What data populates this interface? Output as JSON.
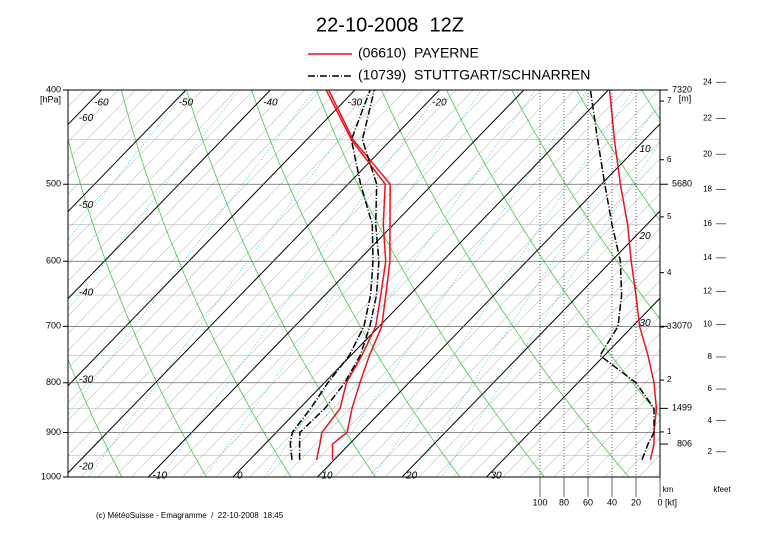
{
  "chart_data": {
    "type": "emagram",
    "title": "22-10-2008  12Z",
    "ylim": [
      400,
      1000
    ],
    "yticks": [
      400,
      500,
      600,
      700,
      800,
      900,
      1000
    ],
    "log_y": true,
    "pressure_unit": "[hPa]",
    "temperature_ticks": [
      -60,
      -50,
      -40,
      -30,
      -20,
      -10,
      0,
      10,
      20,
      30
    ],
    "heights": [
      {
        "p": 400,
        "h": 7320
      },
      {
        "p": 500,
        "h": 5680
      },
      {
        "p": 700,
        "h": 3070
      },
      {
        "p": 850,
        "h": 1499
      },
      {
        "p": 925,
        "h": 806
      }
    ],
    "height_unit": "[m]",
    "km_ticks": [
      1,
      2,
      3,
      4,
      5,
      6,
      7
    ],
    "km_label": "km",
    "kfeet_ticks": [
      2,
      4,
      6,
      8,
      10,
      12,
      14,
      16,
      18,
      20,
      22,
      24
    ],
    "kfeet_label": "kfeet",
    "speed_lim": [
      0,
      100
    ],
    "speed_ticks": [
      100,
      80,
      60,
      40,
      20,
      0
    ],
    "speed_unit": "[kt]",
    "levels": [
      960,
      925,
      900,
      850,
      800,
      750,
      700,
      650,
      600,
      550,
      500,
      450,
      400
    ],
    "series": [
      {
        "name": "(06610)  PAYERNE",
        "color": "#e8141c",
        "style": "solid",
        "temperature": [
          9.8,
          8.0,
          8.4,
          6.2,
          4.2,
          2.2,
          0.3,
          -2.8,
          -6.2,
          -10.4,
          -15.0,
          -24.5,
          -33.1
        ],
        "dewpoint": [
          7.9,
          6.5,
          5.4,
          4.8,
          2.6,
          1.3,
          -0.4,
          -3.4,
          -6.7,
          -11.2,
          -15.6,
          -24.7,
          -33.4
        ],
        "wind_speed": [
          8,
          5,
          5,
          3,
          5,
          10,
          17,
          20,
          24,
          27,
          33,
          38,
          42
        ]
      },
      {
        "name": "(10739)  STUTTGART/SCHNARREN",
        "color": "#000000",
        "style": "dashdot",
        "temperature": [
          5.9,
          4.1,
          2.8,
          3.0,
          2.4,
          1.1,
          -1.1,
          -3.9,
          -7.5,
          -12.1,
          -16.6,
          -23.4,
          -27.7
        ],
        "dewpoint": [
          5.0,
          3.0,
          1.9,
          1.3,
          0.4,
          -0.2,
          -1.8,
          -4.6,
          -8.2,
          -12.5,
          -18.5,
          -24.7,
          -28.2
        ],
        "wind_speed": [
          15,
          10,
          5,
          5,
          20,
          50,
          35,
          32,
          33,
          40,
          46,
          52,
          58
        ]
      }
    ],
    "footer": "(c) MétéoSuisse - Emagramme  /  22-10-2008  18:45"
  }
}
